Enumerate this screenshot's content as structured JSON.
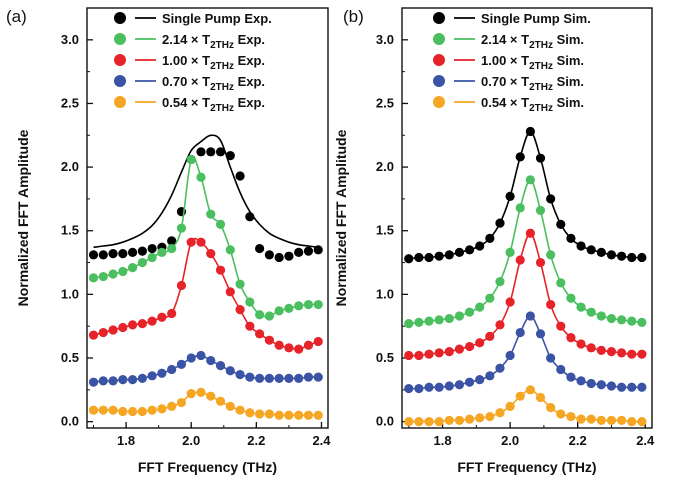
{
  "chart_data": [
    {
      "type": "scatter",
      "panel_label": "(a)",
      "xlabel": "FFT Frequency (THz)",
      "ylabel": "Normalized FFT Amplitude",
      "xlim": [
        1.68,
        2.42
      ],
      "ylim": [
        -0.05,
        3.25
      ],
      "xticks": [
        "1.8",
        "2.0",
        "2.2",
        "2.4"
      ],
      "yticks": [
        "0.0",
        "0.5",
        "1.0",
        "1.5",
        "2.0",
        "2.5",
        "3.0"
      ],
      "legend_position": "top",
      "x": [
        1.7,
        1.73,
        1.76,
        1.79,
        1.82,
        1.85,
        1.88,
        1.91,
        1.94,
        1.97,
        2.0,
        2.03,
        2.06,
        2.09,
        2.12,
        2.15,
        2.18,
        2.21,
        2.24,
        2.27,
        2.3,
        2.33,
        2.36,
        2.39
      ],
      "series": [
        {
          "name": "Single Pump Exp.",
          "color": "#000000",
          "points": [
            1.31,
            1.31,
            1.32,
            1.32,
            1.33,
            1.34,
            1.36,
            1.37,
            1.42,
            1.65,
            2.06,
            2.12,
            2.12,
            2.12,
            2.09,
            1.93,
            1.61,
            1.36,
            1.31,
            1.29,
            1.3,
            1.33,
            1.34,
            1.35
          ],
          "fit": [
            1.37,
            1.38,
            1.39,
            1.41,
            1.44,
            1.48,
            1.54,
            1.64,
            1.78,
            1.96,
            2.13,
            2.2,
            2.25,
            2.21,
            2.0,
            1.8,
            1.65,
            1.55,
            1.48,
            1.44,
            1.41,
            1.39,
            1.38,
            1.37
          ]
        },
        {
          "name_prefix": "2.14 × T",
          "name_sub": "2THz",
          "name_suffix": " Exp.",
          "color": "#4bbf5f",
          "points": [
            1.13,
            1.14,
            1.16,
            1.18,
            1.21,
            1.25,
            1.29,
            1.33,
            1.36,
            1.52,
            2.06,
            1.92,
            1.63,
            1.55,
            1.35,
            1.08,
            0.94,
            0.84,
            0.83,
            0.87,
            0.89,
            0.91,
            0.92,
            0.92
          ]
        },
        {
          "name_prefix": "1.00 × T",
          "name_sub": "2THz",
          "name_suffix": " Exp.",
          "color": "#e52329",
          "points": [
            0.68,
            0.7,
            0.72,
            0.74,
            0.76,
            0.77,
            0.79,
            0.82,
            0.85,
            1.07,
            1.41,
            1.41,
            1.32,
            1.19,
            1.02,
            0.88,
            0.75,
            0.69,
            0.64,
            0.6,
            0.58,
            0.57,
            0.6,
            0.63
          ]
        },
        {
          "name_prefix": "0.70 × T",
          "name_sub": "2THz",
          "name_suffix": " Exp.",
          "color": "#3a53a4",
          "points": [
            0.31,
            0.32,
            0.32,
            0.33,
            0.33,
            0.34,
            0.36,
            0.38,
            0.41,
            0.45,
            0.5,
            0.52,
            0.48,
            0.44,
            0.4,
            0.37,
            0.35,
            0.34,
            0.34,
            0.34,
            0.34,
            0.34,
            0.35,
            0.35
          ]
        },
        {
          "name_prefix": "0.54 × T",
          "name_sub": "2THz",
          "name_suffix": " Exp.",
          "color": "#f5a623",
          "points": [
            0.09,
            0.09,
            0.09,
            0.08,
            0.08,
            0.08,
            0.09,
            0.1,
            0.12,
            0.15,
            0.22,
            0.23,
            0.2,
            0.16,
            0.12,
            0.09,
            0.07,
            0.06,
            0.06,
            0.05,
            0.05,
            0.05,
            0.05,
            0.05
          ]
        }
      ]
    },
    {
      "type": "scatter",
      "panel_label": "(b)",
      "xlabel": "FFT Frequency (THz)",
      "ylabel": "Normalized FFT Amplitude",
      "xlim": [
        1.68,
        2.42
      ],
      "ylim": [
        -0.05,
        3.25
      ],
      "xticks": [
        "1.8",
        "2.0",
        "2.2",
        "2.4"
      ],
      "yticks": [
        "0.0",
        "0.5",
        "1.0",
        "1.5",
        "2.0",
        "2.5",
        "3.0"
      ],
      "legend_position": "top",
      "x": [
        1.7,
        1.73,
        1.76,
        1.79,
        1.82,
        1.85,
        1.88,
        1.91,
        1.94,
        1.97,
        2.0,
        2.03,
        2.06,
        2.09,
        2.12,
        2.15,
        2.18,
        2.21,
        2.24,
        2.27,
        2.3,
        2.33,
        2.36,
        2.39
      ],
      "series": [
        {
          "name": "Single Pump Sim.",
          "color": "#000000",
          "points": [
            1.28,
            1.29,
            1.29,
            1.3,
            1.31,
            1.33,
            1.35,
            1.38,
            1.44,
            1.56,
            1.77,
            2.08,
            2.28,
            2.07,
            1.75,
            1.55,
            1.44,
            1.38,
            1.35,
            1.33,
            1.31,
            1.3,
            1.29,
            1.29
          ]
        },
        {
          "name_prefix": "2.14 × T",
          "name_sub": "2THz",
          "name_suffix": " Sim.",
          "color": "#4bbf5f",
          "points": [
            0.77,
            0.78,
            0.79,
            0.8,
            0.81,
            0.83,
            0.86,
            0.9,
            0.97,
            1.1,
            1.33,
            1.68,
            1.9,
            1.66,
            1.31,
            1.09,
            0.97,
            0.9,
            0.86,
            0.83,
            0.81,
            0.8,
            0.79,
            0.78
          ]
        },
        {
          "name_prefix": "1.00 × T",
          "name_sub": "2THz",
          "name_suffix": " Sim.",
          "color": "#e52329",
          "points": [
            0.52,
            0.52,
            0.53,
            0.54,
            0.55,
            0.57,
            0.59,
            0.62,
            0.67,
            0.76,
            0.94,
            1.27,
            1.48,
            1.25,
            0.92,
            0.75,
            0.66,
            0.61,
            0.58,
            0.56,
            0.55,
            0.54,
            0.53,
            0.53
          ]
        },
        {
          "name_prefix": "0.70 × T",
          "name_sub": "2THz",
          "name_suffix": " Sim.",
          "color": "#3a53a4",
          "points": [
            0.26,
            0.26,
            0.27,
            0.27,
            0.28,
            0.29,
            0.31,
            0.33,
            0.36,
            0.42,
            0.52,
            0.7,
            0.83,
            0.69,
            0.5,
            0.41,
            0.35,
            0.32,
            0.3,
            0.29,
            0.28,
            0.27,
            0.27,
            0.27
          ]
        },
        {
          "name_prefix": "0.54 × T",
          "name_sub": "2THz",
          "name_suffix": " Sim.",
          "color": "#f5a623",
          "points": [
            0.0,
            0.0,
            0.0,
            0.0,
            0.01,
            0.01,
            0.02,
            0.03,
            0.04,
            0.07,
            0.12,
            0.2,
            0.25,
            0.19,
            0.11,
            0.06,
            0.04,
            0.02,
            0.02,
            0.01,
            0.01,
            0.01,
            0.0,
            0.0
          ]
        }
      ]
    }
  ]
}
